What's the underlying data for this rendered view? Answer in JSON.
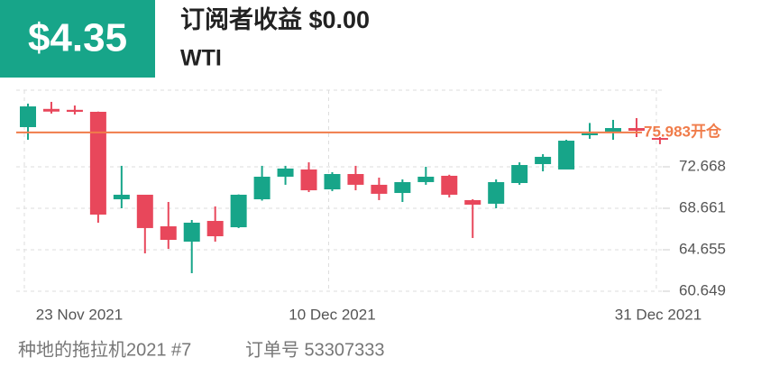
{
  "header": {
    "badge": "$4.35",
    "earnings": "订阅者收益 $0.00",
    "symbol": "WTI"
  },
  "chart_data": {
    "type": "candlestick",
    "categories": [
      "23 Nov 2021",
      null,
      null,
      null,
      null,
      null,
      null,
      null,
      null,
      null,
      null,
      null,
      null,
      "10 Dec 2021",
      null,
      null,
      null,
      null,
      null,
      null,
      null,
      null,
      null,
      null,
      null,
      null,
      null,
      "31 Dec 2021"
    ],
    "open": [
      76.5,
      78.26,
      78.17,
      77.98,
      69.53,
      69.97,
      66.92,
      65.44,
      67.44,
      66.83,
      69.53,
      71.71,
      72.41,
      70.49,
      71.97,
      70.93,
      70.14,
      71.19,
      71.8,
      69.45,
      69.1,
      71.1,
      72.93,
      72.41,
      75.72,
      76.07,
      76.41,
      75.45
    ],
    "high": [
      78.77,
      78.94,
      78.59,
      78.0,
      72.76,
      69.97,
      69.27,
      67.53,
      68.84,
      70.0,
      72.76,
      72.76,
      73.1,
      72.15,
      72.76,
      71.62,
      71.45,
      72.67,
      71.9,
      69.53,
      71.45,
      73.1,
      73.89,
      75.28,
      76.9,
      77.2,
      77.37,
      75.54
    ],
    "low": [
      75.28,
      77.81,
      77.72,
      67.27,
      68.66,
      64.31,
      64.74,
      62.39,
      65.44,
      66.75,
      69.4,
      70.93,
      70.23,
      70.32,
      70.4,
      69.45,
      69.27,
      70.93,
      69.71,
      65.79,
      68.66,
      70.93,
      72.23,
      72.5,
      75.37,
      75.28,
      75.54,
      74.85
    ],
    "close": [
      78.5,
      78.0,
      77.98,
      68.05,
      69.97,
      66.75,
      65.61,
      67.27,
      65.96,
      69.97,
      71.71,
      72.5,
      70.4,
      71.97,
      70.93,
      70.06,
      71.19,
      71.71,
      69.97,
      69.01,
      71.19,
      72.84,
      73.63,
      75.19,
      75.89,
      76.41,
      76.15,
      75.28
    ],
    "up_color": "#17a589",
    "down_color": "#e8475b",
    "ylim": [
      60.649,
      80.07
    ],
    "yticks": [
      60.649,
      64.655,
      68.661,
      72.668
    ],
    "grid": true,
    "reference_line": {
      "value": 75.983,
      "label": "75.983开仓",
      "color": "#f07c4a"
    }
  },
  "footer": {
    "name": "种地的拖拉机2021 #7",
    "order": "订单号 53307333"
  }
}
